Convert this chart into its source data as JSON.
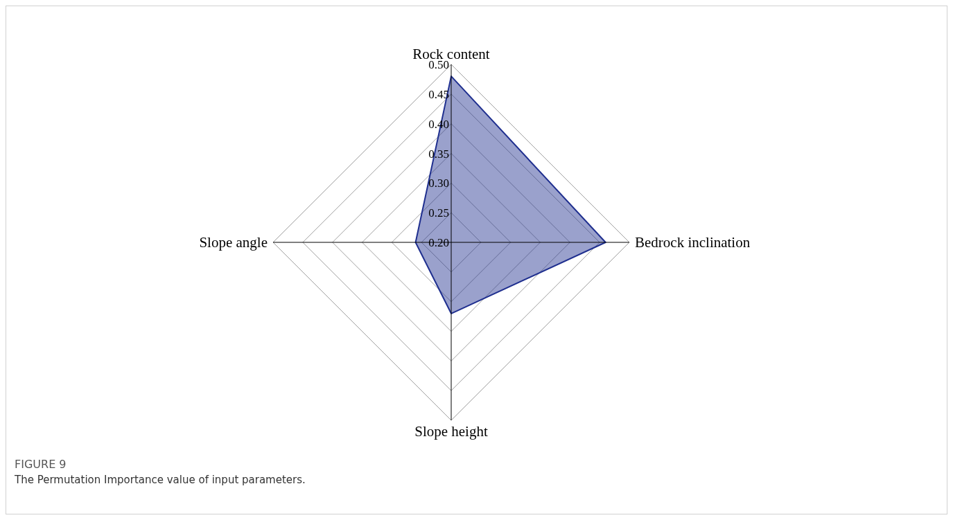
{
  "chart_data": {
    "type": "radar",
    "categories": [
      "Rock content",
      "Bedrock inclination",
      "Slope height",
      "Slope angle"
    ],
    "series": [
      {
        "color": "#1f2f8f",
        "values": [
          0.48,
          0.46,
          0.32,
          0.26
        ]
      }
    ],
    "ylim": [
      0.2,
      0.5
    ],
    "yticks": [
      {
        "value": 0.2,
        "label": "0.20"
      },
      0.25,
      {
        "value": 0.3,
        "label": "0.30"
      },
      0.35,
      {
        "value": 0.4,
        "label": "0.40"
      },
      0.45,
      {
        "value": 0.5,
        "label": "0.50"
      }
    ],
    "grid": true,
    "legend": false,
    "marker": "none",
    "annotations": [
      "FIGURE 9",
      "The Permutation Importance value of input parameters."
    ]
  }
}
